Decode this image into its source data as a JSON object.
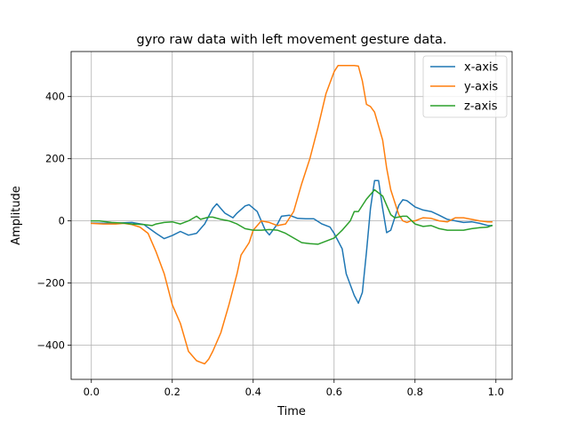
{
  "chart_data": {
    "type": "line",
    "title": "gyro raw data with left movement gesture data.",
    "xlabel": "Time",
    "ylabel": "Amplitude",
    "xlim": [
      -0.05,
      1.04
    ],
    "ylim": [
      -510,
      545
    ],
    "xticks": [
      0.0,
      0.2,
      0.4,
      0.6,
      0.8,
      1.0
    ],
    "xtick_labels": [
      "0.0",
      "0.2",
      "0.4",
      "0.6",
      "0.8",
      "1.0"
    ],
    "yticks": [
      -400,
      -200,
      0,
      200,
      400
    ],
    "ytick_labels": [
      "−400",
      "−200",
      "0",
      "200",
      "400"
    ],
    "grid": true,
    "legend_position": "upper-right",
    "series": [
      {
        "name": "x-axis",
        "color": "#1f77b4",
        "points": [
          [
            0.0,
            -7
          ],
          [
            0.05,
            -8
          ],
          [
            0.1,
            -5
          ],
          [
            0.13,
            -12
          ],
          [
            0.16,
            -40
          ],
          [
            0.18,
            -57
          ],
          [
            0.2,
            -47
          ],
          [
            0.22,
            -34
          ],
          [
            0.24,
            -46
          ],
          [
            0.26,
            -40
          ],
          [
            0.28,
            -10
          ],
          [
            0.3,
            40
          ],
          [
            0.31,
            55
          ],
          [
            0.33,
            25
          ],
          [
            0.35,
            10
          ],
          [
            0.36,
            25
          ],
          [
            0.38,
            48
          ],
          [
            0.39,
            52
          ],
          [
            0.41,
            30
          ],
          [
            0.43,
            -30
          ],
          [
            0.44,
            -45
          ],
          [
            0.46,
            -10
          ],
          [
            0.47,
            15
          ],
          [
            0.49,
            18
          ],
          [
            0.51,
            8
          ],
          [
            0.53,
            7
          ],
          [
            0.55,
            7
          ],
          [
            0.57,
            -10
          ],
          [
            0.59,
            -20
          ],
          [
            0.6,
            -40
          ],
          [
            0.62,
            -90
          ],
          [
            0.63,
            -170
          ],
          [
            0.65,
            -240
          ],
          [
            0.66,
            -265
          ],
          [
            0.67,
            -230
          ],
          [
            0.68,
            -100
          ],
          [
            0.69,
            40
          ],
          [
            0.7,
            130
          ],
          [
            0.71,
            130
          ],
          [
            0.72,
            40
          ],
          [
            0.73,
            -38
          ],
          [
            0.74,
            -30
          ],
          [
            0.75,
            10
          ],
          [
            0.76,
            50
          ],
          [
            0.77,
            68
          ],
          [
            0.78,
            65
          ],
          [
            0.8,
            45
          ],
          [
            0.82,
            35
          ],
          [
            0.84,
            30
          ],
          [
            0.86,
            18
          ],
          [
            0.88,
            5
          ],
          [
            0.9,
            0
          ],
          [
            0.92,
            -5
          ],
          [
            0.94,
            -3
          ],
          [
            0.96,
            -8
          ],
          [
            0.98,
            -15
          ],
          [
            0.99,
            -15
          ]
        ]
      },
      {
        "name": "y-axis",
        "color": "#ff7f0e",
        "points": [
          [
            0.0,
            -8
          ],
          [
            0.03,
            -10
          ],
          [
            0.06,
            -10
          ],
          [
            0.08,
            -8
          ],
          [
            0.1,
            -12
          ],
          [
            0.12,
            -20
          ],
          [
            0.14,
            -40
          ],
          [
            0.16,
            -100
          ],
          [
            0.18,
            -170
          ],
          [
            0.2,
            -270
          ],
          [
            0.22,
            -330
          ],
          [
            0.24,
            -420
          ],
          [
            0.26,
            -450
          ],
          [
            0.27,
            -455
          ],
          [
            0.28,
            -460
          ],
          [
            0.29,
            -445
          ],
          [
            0.3,
            -420
          ],
          [
            0.32,
            -360
          ],
          [
            0.34,
            -270
          ],
          [
            0.36,
            -170
          ],
          [
            0.37,
            -110
          ],
          [
            0.39,
            -70
          ],
          [
            0.4,
            -30
          ],
          [
            0.42,
            0
          ],
          [
            0.44,
            -5
          ],
          [
            0.46,
            -15
          ],
          [
            0.48,
            -10
          ],
          [
            0.5,
            30
          ],
          [
            0.52,
            120
          ],
          [
            0.54,
            200
          ],
          [
            0.56,
            300
          ],
          [
            0.58,
            410
          ],
          [
            0.6,
            480
          ],
          [
            0.61,
            500
          ],
          [
            0.63,
            500
          ],
          [
            0.65,
            500
          ],
          [
            0.66,
            498
          ],
          [
            0.67,
            450
          ],
          [
            0.68,
            375
          ],
          [
            0.69,
            368
          ],
          [
            0.7,
            350
          ],
          [
            0.72,
            260
          ],
          [
            0.73,
            170
          ],
          [
            0.74,
            100
          ],
          [
            0.75,
            60
          ],
          [
            0.76,
            20
          ],
          [
            0.77,
            0
          ],
          [
            0.78,
            -5
          ],
          [
            0.79,
            0
          ],
          [
            0.8,
            0
          ],
          [
            0.82,
            10
          ],
          [
            0.84,
            8
          ],
          [
            0.86,
            0
          ],
          [
            0.88,
            -3
          ],
          [
            0.9,
            10
          ],
          [
            0.92,
            10
          ],
          [
            0.94,
            5
          ],
          [
            0.96,
            0
          ],
          [
            0.98,
            -3
          ],
          [
            0.99,
            -3
          ]
        ]
      },
      {
        "name": "z-axis",
        "color": "#2ca02c",
        "points": [
          [
            0.0,
            0
          ],
          [
            0.02,
            0
          ],
          [
            0.05,
            -5
          ],
          [
            0.08,
            -7
          ],
          [
            0.1,
            -10
          ],
          [
            0.13,
            -12
          ],
          [
            0.15,
            -15
          ],
          [
            0.16,
            -10
          ],
          [
            0.18,
            -5
          ],
          [
            0.2,
            -3
          ],
          [
            0.22,
            -10
          ],
          [
            0.24,
            0
          ],
          [
            0.26,
            15
          ],
          [
            0.27,
            5
          ],
          [
            0.29,
            12
          ],
          [
            0.3,
            12
          ],
          [
            0.32,
            5
          ],
          [
            0.34,
            0
          ],
          [
            0.36,
            -10
          ],
          [
            0.38,
            -25
          ],
          [
            0.4,
            -30
          ],
          [
            0.42,
            -30
          ],
          [
            0.44,
            -28
          ],
          [
            0.46,
            -30
          ],
          [
            0.48,
            -40
          ],
          [
            0.5,
            -55
          ],
          [
            0.52,
            -70
          ],
          [
            0.54,
            -73
          ],
          [
            0.56,
            -75
          ],
          [
            0.58,
            -65
          ],
          [
            0.6,
            -55
          ],
          [
            0.62,
            -30
          ],
          [
            0.64,
            0
          ],
          [
            0.65,
            30
          ],
          [
            0.66,
            30
          ],
          [
            0.68,
            70
          ],
          [
            0.7,
            100
          ],
          [
            0.72,
            80
          ],
          [
            0.73,
            50
          ],
          [
            0.74,
            20
          ],
          [
            0.75,
            10
          ],
          [
            0.77,
            15
          ],
          [
            0.78,
            15
          ],
          [
            0.8,
            -10
          ],
          [
            0.82,
            -18
          ],
          [
            0.84,
            -15
          ],
          [
            0.86,
            -25
          ],
          [
            0.88,
            -30
          ],
          [
            0.9,
            -30
          ],
          [
            0.92,
            -30
          ],
          [
            0.94,
            -25
          ],
          [
            0.96,
            -22
          ],
          [
            0.98,
            -20
          ],
          [
            0.99,
            -15
          ]
        ]
      }
    ]
  }
}
